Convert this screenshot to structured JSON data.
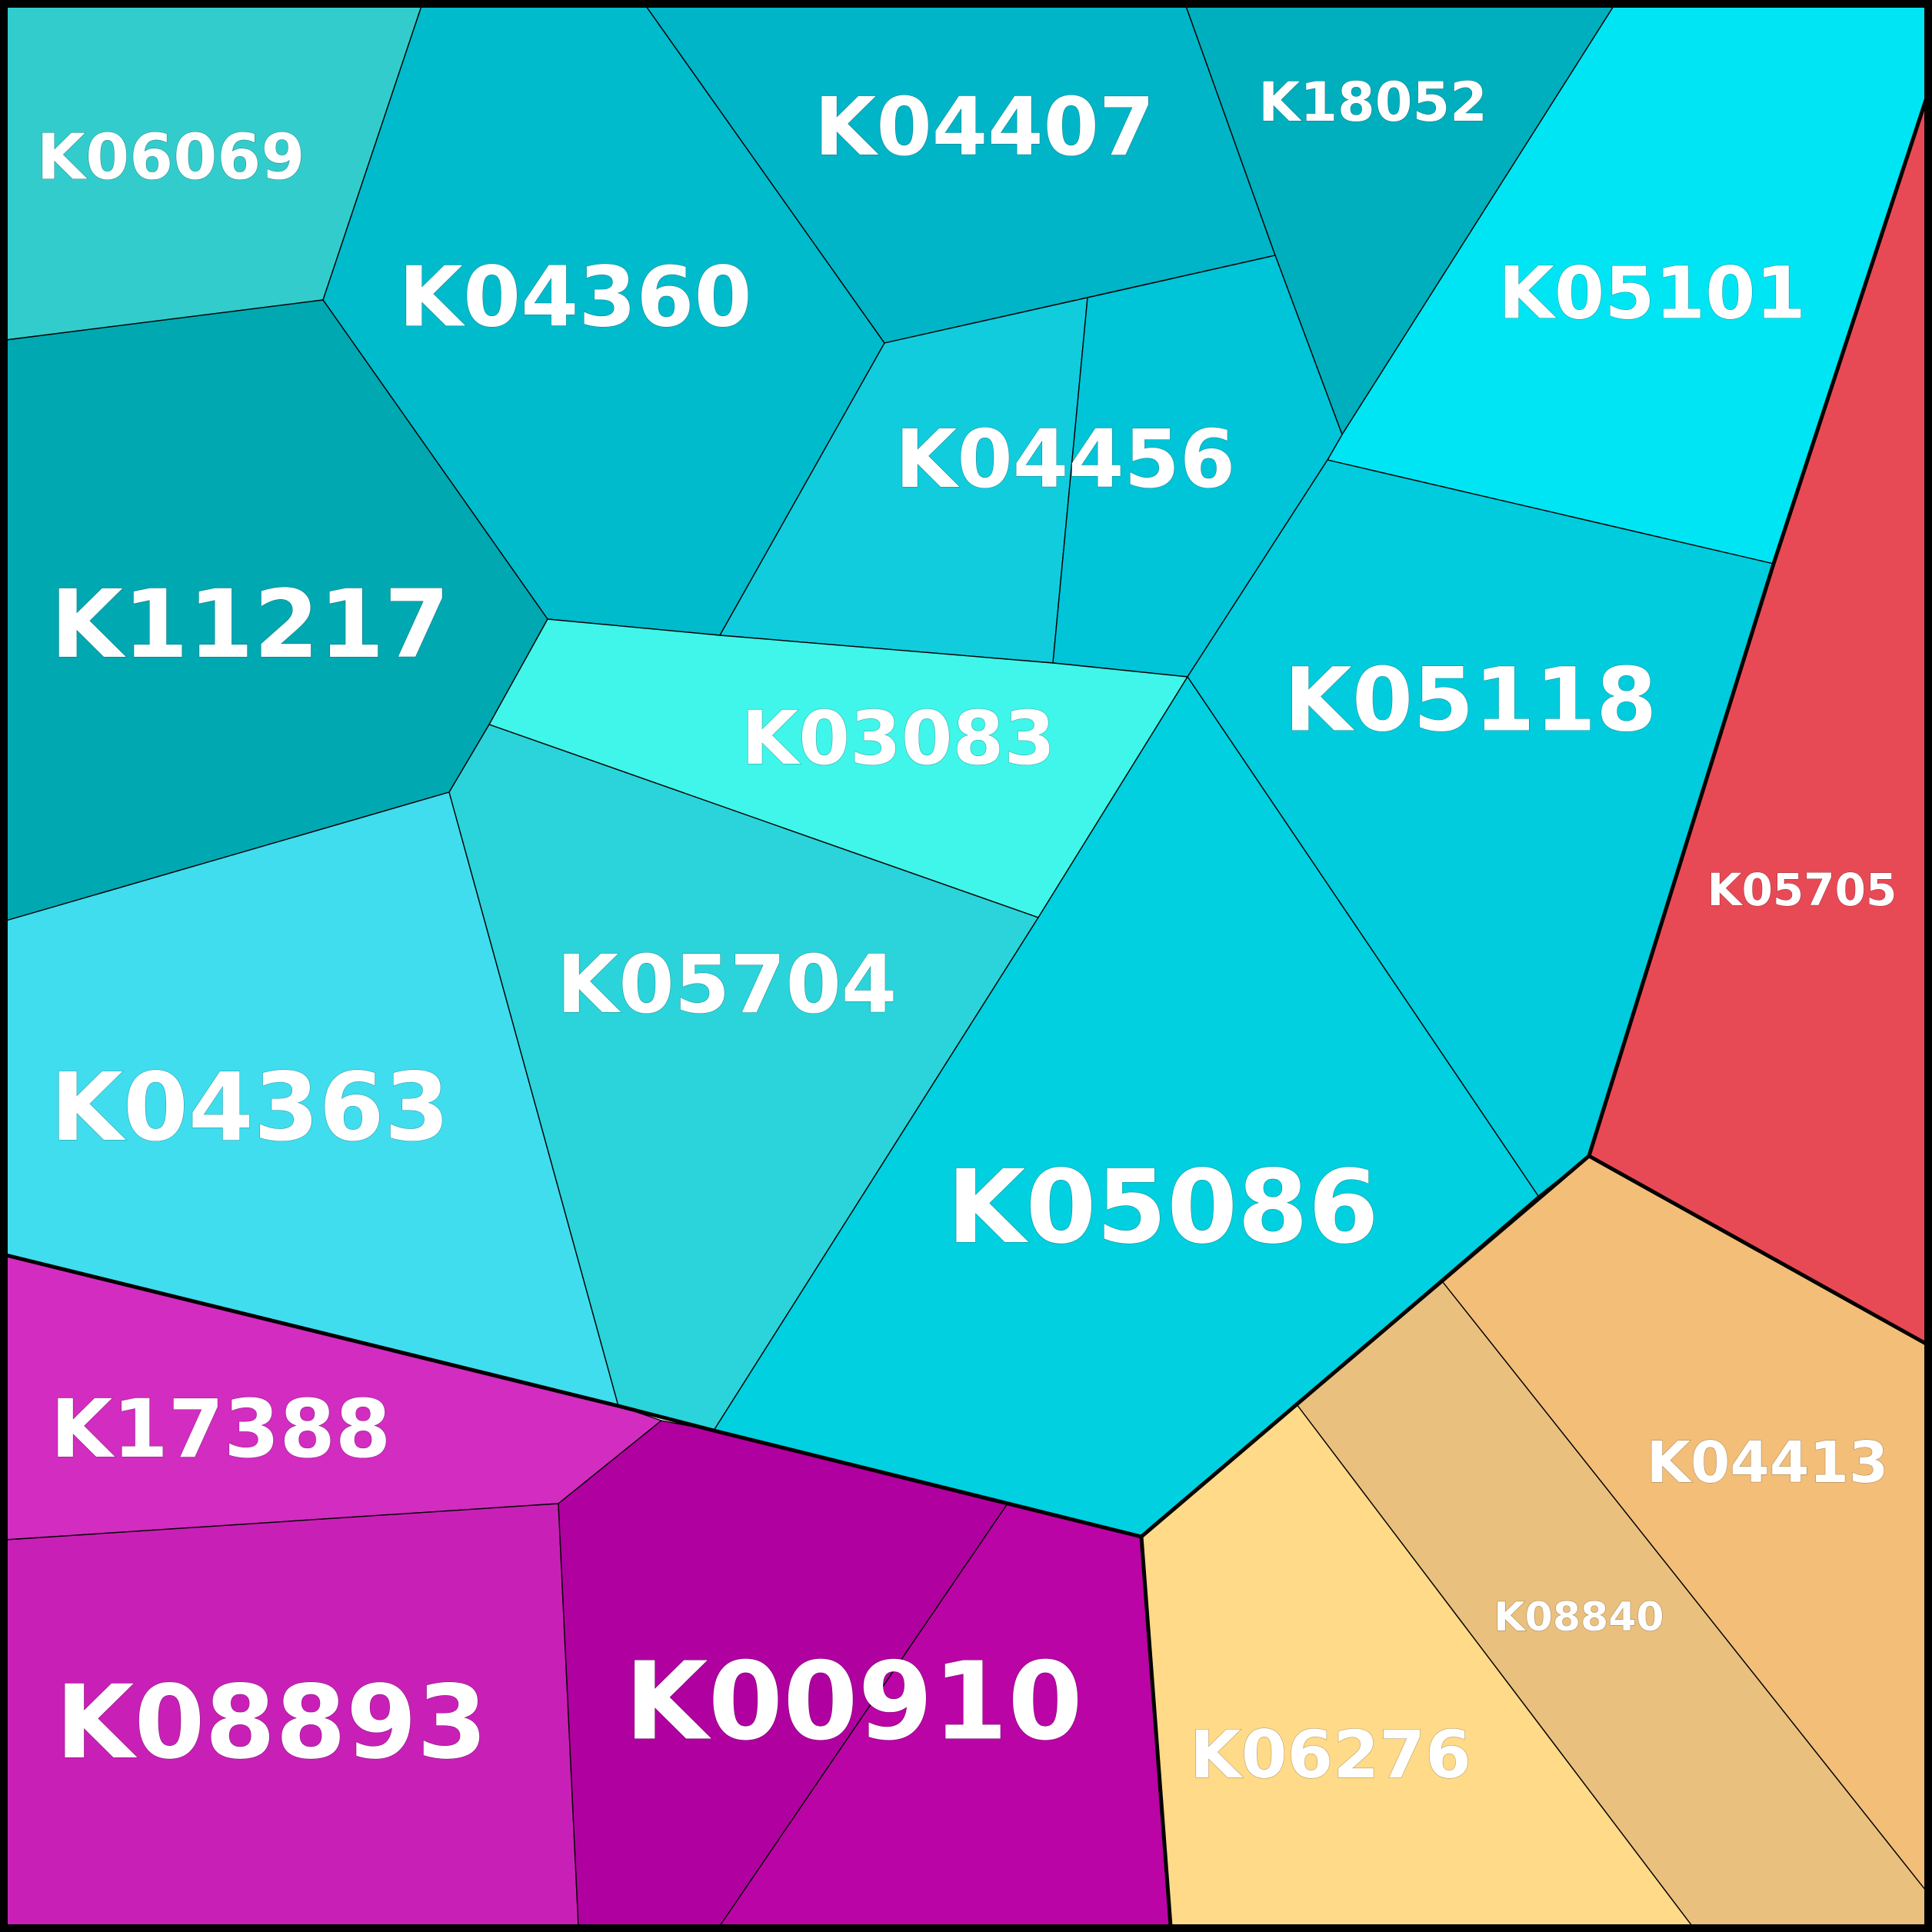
{
  "diagram": {
    "type": "voronoi-treemap",
    "groups": [
      {
        "name": "cyan-group",
        "cells": [
          {
            "id": "k06069",
            "label": "K06069",
            "color": "#33CCCC"
          },
          {
            "id": "k04360",
            "label": "K04360",
            "color": "#00BBCC"
          },
          {
            "id": "k04407",
            "label": "K04407",
            "color": "#00B5C8"
          },
          {
            "id": "k18052",
            "label": "K18052",
            "color": "#00AFBD"
          },
          {
            "id": "k05101",
            "label": "K05101",
            "color": "#00E5F3"
          },
          {
            "id": "k11217",
            "label": "K11217",
            "color": "#00A8B2"
          },
          {
            "id": "k04456a",
            "label": "K04456",
            "color": "#11CCDD"
          },
          {
            "id": "k04456b",
            "label": "",
            "color": "#00C4D8"
          },
          {
            "id": "k03083",
            "label": "K03083",
            "color": "#40F5EA"
          },
          {
            "id": "k05118",
            "label": "K05118",
            "color": "#00CCDD"
          },
          {
            "id": "k04363",
            "label": "K04363",
            "color": "#40DDEE"
          },
          {
            "id": "k05704",
            "label": "K05704",
            "color": "#2AD4DA"
          },
          {
            "id": "k05086",
            "label": "K05086",
            "color": "#00D0E0"
          }
        ]
      },
      {
        "name": "red-group",
        "cells": [
          {
            "id": "k05705",
            "label": "K05705",
            "color": "#E84A55"
          }
        ]
      },
      {
        "name": "magenta-group",
        "cells": [
          {
            "id": "k17388",
            "label": "K17388",
            "color": "#D22CC0"
          },
          {
            "id": "k08893",
            "label": "K08893",
            "color": "#C820B6"
          },
          {
            "id": "k00910a",
            "label": "K00910",
            "color": "#B000A0"
          },
          {
            "id": "k00910b",
            "label": "",
            "color": "#BA04A6"
          }
        ]
      },
      {
        "name": "orange-group",
        "cells": [
          {
            "id": "k06276",
            "label": "K06276",
            "color": "#FFDA88"
          },
          {
            "id": "k08840",
            "label": "K08840",
            "color": "#EAC07E"
          },
          {
            "id": "k04413",
            "label": "K04413",
            "color": "#F2BE78"
          }
        ]
      }
    ]
  }
}
